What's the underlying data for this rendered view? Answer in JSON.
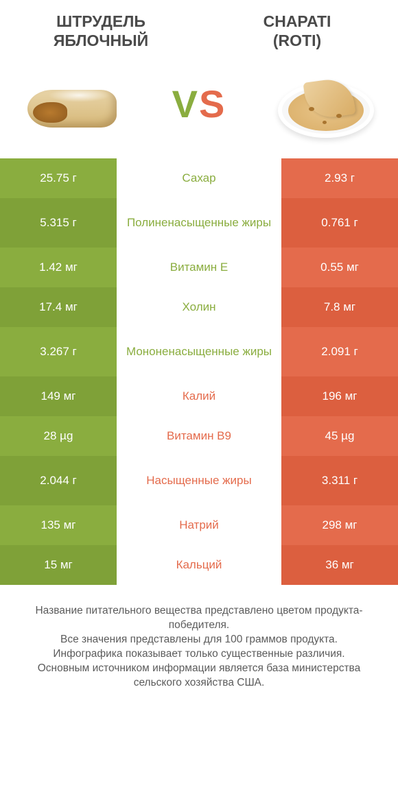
{
  "colors": {
    "green": "#8aad3f",
    "green_dark": "#7fa138",
    "orange": "#e46b4c",
    "orange_dark": "#dc5f3f",
    "text_gray": "#4a4a4a",
    "footer_gray": "#5b5b5b",
    "background": "#ffffff"
  },
  "header": {
    "left_title": "ШТРУДЕЛЬ ЯБЛОЧНЫЙ",
    "right_title_line1": "CHAPATI",
    "right_title_line2": "(ROTI)"
  },
  "vs": {
    "v": "V",
    "s": "S"
  },
  "rows": [
    {
      "left": "25.75 г",
      "label": "Сахар",
      "right": "2.93 г",
      "winner": "left",
      "tall": false
    },
    {
      "left": "5.315 г",
      "label": "Полиненасыщенные жиры",
      "right": "0.761 г",
      "winner": "left",
      "tall": true
    },
    {
      "left": "1.42 мг",
      "label": "Витамин E",
      "right": "0.55 мг",
      "winner": "left",
      "tall": false
    },
    {
      "left": "17.4 мг",
      "label": "Холин",
      "right": "7.8 мг",
      "winner": "left",
      "tall": false
    },
    {
      "left": "3.267 г",
      "label": "Мононенасыщенные жиры",
      "right": "2.091 г",
      "winner": "left",
      "tall": true
    },
    {
      "left": "149 мг",
      "label": "Калий",
      "right": "196 мг",
      "winner": "right",
      "tall": false
    },
    {
      "left": "28 µg",
      "label": "Витамин B9",
      "right": "45 µg",
      "winner": "right",
      "tall": false
    },
    {
      "left": "2.044 г",
      "label": "Насыщенные жиры",
      "right": "3.311 г",
      "winner": "right",
      "tall": true
    },
    {
      "left": "135 мг",
      "label": "Натрий",
      "right": "298 мг",
      "winner": "right",
      "tall": false
    },
    {
      "left": "15 мг",
      "label": "Кальций",
      "right": "36 мг",
      "winner": "right",
      "tall": false
    }
  ],
  "footer": {
    "line1": "Название питательного вещества представлено цветом продукта-победителя.",
    "line2": "Все значения представлены для 100 граммов продукта.",
    "line3": "Инфографика показывает только существенные различия.",
    "line4": "Основным источником информации является база министерства сельского хозяйства США."
  }
}
